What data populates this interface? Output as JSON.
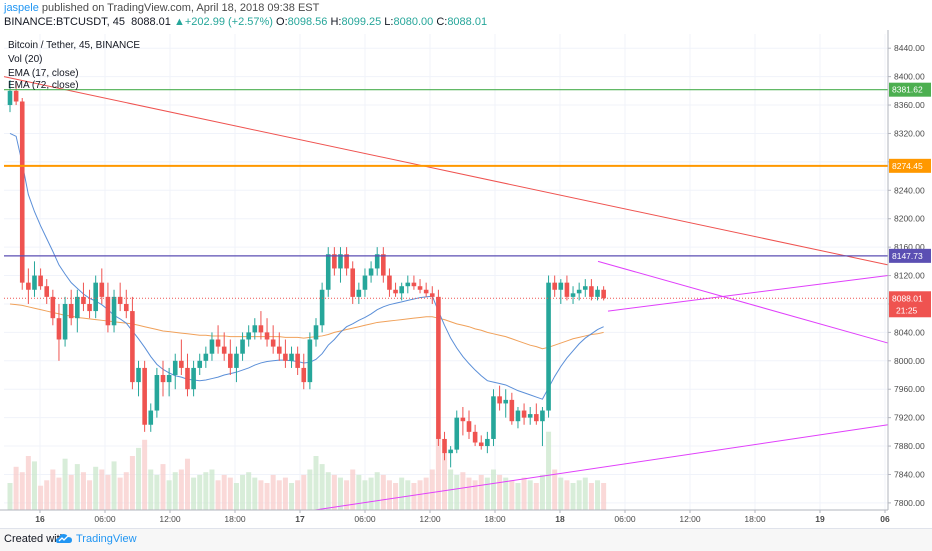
{
  "header": {
    "user": "jaspele",
    "published_text": "published on TradingView.com, April 18, 2018 09:38 EST",
    "symbol": "BINANCE:BTCUSDT, 45",
    "last": "8088.01",
    "arrow": "▲",
    "change": "+202.99 (+2.57%)",
    "o_label": "O:",
    "o_value": "8098.56",
    "h_label": "H:",
    "h_value": "8099.25",
    "l_label": "L:",
    "l_value": "8080.00",
    "c_label": "C:",
    "c_value": "8088.01"
  },
  "legend": {
    "line1": "Bitcoin / Tether, 45, BINANCE",
    "line2": "Vol (20)",
    "line3": "EMA (17, close)",
    "line4": "EMA (72, close)"
  },
  "footer": {
    "created": "Created with",
    "brand": "TradingView"
  },
  "colors": {
    "up": "#26a69a",
    "down": "#ef5350",
    "ema17": "#5b8fd8",
    "ema72": "#f0a15a",
    "green_level": "#4caf50",
    "orange_level": "#ff9800",
    "purple_level": "#5b4fb3",
    "trend_red": "#ef5350",
    "magenta": "#e040fb"
  },
  "chart_data": {
    "type": "candlestick",
    "ylim": [
      7790,
      8460
    ],
    "y_ticks": [
      7800,
      7840,
      7880,
      7920,
      7960,
      8000,
      8040,
      8080,
      8120,
      8160,
      8200,
      8240,
      8280,
      8320,
      8360,
      8400,
      8440
    ],
    "y_tick_labels": [
      "7800.00",
      "7840.00",
      "7880.00",
      "7920.00",
      "7960.00",
      "8000.00",
      "8040.00",
      "8080.00",
      "8120.00",
      "8160.00",
      "8200.00",
      "8240.00",
      "8280.00",
      "8320.00",
      "8360.00",
      "8400.00",
      "8440.00"
    ],
    "x_tick_labels": [
      "16",
      "06:00",
      "12:00",
      "18:00",
      "17",
      "06:00",
      "12:00",
      "18:00",
      "18",
      "06:00",
      "12:00",
      "18:00",
      "19",
      "06"
    ],
    "bars": [
      [
        8360,
        8395,
        8350,
        8380
      ],
      [
        8380,
        8390,
        8360,
        8365
      ],
      [
        8365,
        8370,
        8100,
        8110
      ],
      [
        8110,
        8130,
        8080,
        8100
      ],
      [
        8100,
        8140,
        8090,
        8120
      ],
      [
        8120,
        8130,
        8100,
        8105
      ],
      [
        8105,
        8115,
        8080,
        8090
      ],
      [
        8090,
        8100,
        8050,
        8060
      ],
      [
        8060,
        8080,
        8000,
        8030
      ],
      [
        8030,
        8090,
        8020,
        8080
      ],
      [
        8080,
        8100,
        8050,
        8060
      ],
      [
        8060,
        8100,
        8040,
        8090
      ],
      [
        8090,
        8110,
        8070,
        8080
      ],
      [
        8080,
        8100,
        8060,
        8070
      ],
      [
        8070,
        8120,
        8060,
        8110
      ],
      [
        8110,
        8130,
        8080,
        8090
      ],
      [
        8090,
        8110,
        8040,
        8050
      ],
      [
        8050,
        8100,
        8040,
        8090
      ],
      [
        8090,
        8110,
        8070,
        8080
      ],
      [
        8080,
        8100,
        8060,
        8070
      ],
      [
        8070,
        8090,
        7960,
        7970
      ],
      [
        7970,
        8000,
        7950,
        7990
      ],
      [
        7990,
        8000,
        7900,
        7910
      ],
      [
        7910,
        7940,
        7900,
        7930
      ],
      [
        7930,
        7990,
        7920,
        7980
      ],
      [
        7980,
        8000,
        7950,
        7970
      ],
      [
        7970,
        7990,
        7950,
        7980
      ],
      [
        7980,
        8010,
        7960,
        8000
      ],
      [
        8000,
        8030,
        7980,
        7990
      ],
      [
        7990,
        8010,
        7950,
        7960
      ],
      [
        7960,
        8000,
        7950,
        7990
      ],
      [
        7990,
        8010,
        7980,
        8000
      ],
      [
        8000,
        8020,
        7990,
        8010
      ],
      [
        8010,
        8040,
        8000,
        8030
      ],
      [
        8030,
        8050,
        8010,
        8020
      ],
      [
        8020,
        8040,
        8000,
        8010
      ],
      [
        8010,
        8030,
        7980,
        7990
      ],
      [
        7990,
        8020,
        7970,
        8010
      ],
      [
        8010,
        8040,
        8000,
        8030
      ],
      [
        8030,
        8050,
        8020,
        8040
      ],
      [
        8040,
        8060,
        8030,
        8050
      ],
      [
        8050,
        8070,
        8030,
        8040
      ],
      [
        8040,
        8060,
        8020,
        8030
      ],
      [
        8030,
        8050,
        8010,
        8020
      ],
      [
        8020,
        8040,
        8000,
        8010
      ],
      [
        8010,
        8030,
        7990,
        8000
      ],
      [
        8000,
        8020,
        7990,
        8010
      ],
      [
        8010,
        8020,
        7980,
        7990
      ],
      [
        7990,
        8010,
        7960,
        7970
      ],
      [
        7970,
        8040,
        7960,
        8030
      ],
      [
        8030,
        8060,
        8020,
        8050
      ],
      [
        8050,
        8110,
        8040,
        8100
      ],
      [
        8100,
        8160,
        8090,
        8150
      ],
      [
        8150,
        8160,
        8120,
        8130
      ],
      [
        8130,
        8160,
        8110,
        8150
      ],
      [
        8150,
        8160,
        8120,
        8130
      ],
      [
        8130,
        8140,
        8080,
        8090
      ],
      [
        8090,
        8110,
        8080,
        8100
      ],
      [
        8100,
        8130,
        8090,
        8120
      ],
      [
        8120,
        8140,
        8110,
        8130
      ],
      [
        8130,
        8160,
        8120,
        8150
      ],
      [
        8150,
        8160,
        8110,
        8120
      ],
      [
        8120,
        8130,
        8090,
        8100
      ],
      [
        8100,
        8110,
        8090,
        8095
      ],
      [
        8095,
        8110,
        8085,
        8105
      ],
      [
        8105,
        8120,
        8095,
        8110
      ],
      [
        8110,
        8120,
        8100,
        8105
      ],
      [
        8105,
        8115,
        8095,
        8100
      ],
      [
        8100,
        8110,
        8090,
        8095
      ],
      [
        8095,
        8105,
        8080,
        8090
      ],
      [
        8090,
        8100,
        7880,
        7890
      ],
      [
        7890,
        7900,
        7860,
        7870
      ],
      [
        7870,
        7880,
        7850,
        7875
      ],
      [
        7875,
        7930,
        7870,
        7920
      ],
      [
        7920,
        7935,
        7895,
        7915
      ],
      [
        7915,
        7930,
        7890,
        7900
      ],
      [
        7900,
        7910,
        7880,
        7885
      ],
      [
        7885,
        7895,
        7875,
        7880
      ],
      [
        7880,
        7900,
        7870,
        7890
      ],
      [
        7890,
        7960,
        7880,
        7950
      ],
      [
        7950,
        7965,
        7930,
        7940
      ],
      [
        7940,
        7960,
        7920,
        7945
      ],
      [
        7945,
        7955,
        7910,
        7915
      ],
      [
        7915,
        7935,
        7905,
        7930
      ],
      [
        7930,
        7940,
        7910,
        7920
      ],
      [
        7920,
        7935,
        7910,
        7925
      ],
      [
        7925,
        7940,
        7910,
        7915
      ],
      [
        7915,
        7935,
        7880,
        7930
      ],
      [
        7930,
        8120,
        7920,
        8110
      ],
      [
        8110,
        8120,
        8090,
        8100
      ],
      [
        8100,
        8115,
        8080,
        8110
      ],
      [
        8110,
        8120,
        8085,
        8090
      ],
      [
        8090,
        8105,
        8080,
        8095
      ],
      [
        8095,
        8110,
        8085,
        8100
      ],
      [
        8100,
        8115,
        8090,
        8105
      ],
      [
        8105,
        8115,
        8085,
        8090
      ],
      [
        8090,
        8105,
        8085,
        8100
      ],
      [
        8100,
        8105,
        8085,
        8088
      ]
    ],
    "ema17": [
      8320,
      8316,
      8278,
      8234,
      8210,
      8190,
      8172,
      8154,
      8135,
      8122,
      8110,
      8102,
      8094,
      8088,
      8084,
      8079,
      8072,
      8064,
      8059,
      8053,
      8042,
      8031,
      8019,
      8006,
      7995,
      7988,
      7983,
      7979,
      7977,
      7974,
      7973,
      7972,
      7973,
      7975,
      7977,
      7980,
      7982,
      7984,
      7987,
      7990,
      7994,
      7997,
      7999,
      8000,
      8001,
      8001,
      8000,
      7999,
      7997,
      7998,
      8002,
      8010,
      8022,
      8030,
      8040,
      8048,
      8052,
      8057,
      8061,
      8066,
      8072,
      8076,
      8079,
      8081,
      8083,
      8085,
      8087,
      8089,
      8090,
      8091,
      8070,
      8050,
      8032,
      8018,
      8006,
      7996,
      7987,
      7979,
      7972,
      7970,
      7968,
      7966,
      7962,
      7958,
      7955,
      7952,
      7949,
      7946,
      7962,
      7978,
      7992,
      8004,
      8014,
      8024,
      8032,
      8038,
      8044,
      8048
    ],
    "ema72": [
      8080,
      8079,
      8078,
      8076,
      8074,
      8072,
      8070,
      8068,
      8066,
      8064,
      8063,
      8061,
      8060,
      8059,
      8058,
      8057,
      8056,
      8055,
      8054,
      8053,
      8052,
      8050,
      8048,
      8046,
      8044,
      8042,
      8041,
      8040,
      8039,
      8038,
      8037,
      8036,
      8036,
      8035,
      8035,
      8035,
      8034,
      8034,
      8034,
      8034,
      8034,
      8034,
      8034,
      8034,
      8034,
      8033,
      8033,
      8033,
      8032,
      8033,
      8034,
      8035,
      8037,
      8040,
      8042,
      8044,
      8046,
      8048,
      8050,
      8052,
      8054,
      8055,
      8056,
      8057,
      8058,
      8059,
      8060,
      8061,
      8062,
      8062,
      8060,
      8058,
      8055,
      8052,
      8050,
      8048,
      8045,
      8043,
      8040,
      8038,
      8036,
      8034,
      8031,
      8028,
      8025,
      8022,
      8020,
      8017,
      8019,
      8022,
      8025,
      8028,
      8031,
      8033,
      8035,
      8037,
      8038,
      8040
    ],
    "volume": [
      20,
      32,
      28,
      40,
      36,
      18,
      22,
      30,
      24,
      38,
      26,
      34,
      28,
      22,
      32,
      30,
      26,
      36,
      24,
      28,
      40,
      46,
      52,
      30,
      26,
      34,
      22,
      28,
      30,
      38,
      24,
      26,
      28,
      30,
      22,
      26,
      24,
      20,
      26,
      28,
      24,
      22,
      20,
      26,
      22,
      24,
      20,
      22,
      26,
      30,
      40,
      34,
      28,
      26,
      24,
      22,
      30,
      26,
      22,
      24,
      28,
      26,
      22,
      20,
      24,
      22,
      20,
      22,
      24,
      30,
      56,
      42,
      30,
      26,
      28,
      24,
      22,
      26,
      24,
      30,
      26,
      24,
      22,
      20,
      24,
      22,
      20,
      26,
      58,
      30,
      24,
      22,
      20,
      22,
      24,
      20,
      22,
      20
    ],
    "levels": [
      {
        "price": 8381.62,
        "label": "8381.62"
      },
      {
        "price": 8274.45,
        "label": "8274.45"
      },
      {
        "price": 8147.73,
        "label": "8147.73"
      }
    ],
    "price_tag": {
      "price": 8088.01,
      "label": "8088.01",
      "countdown": "21:25"
    }
  }
}
